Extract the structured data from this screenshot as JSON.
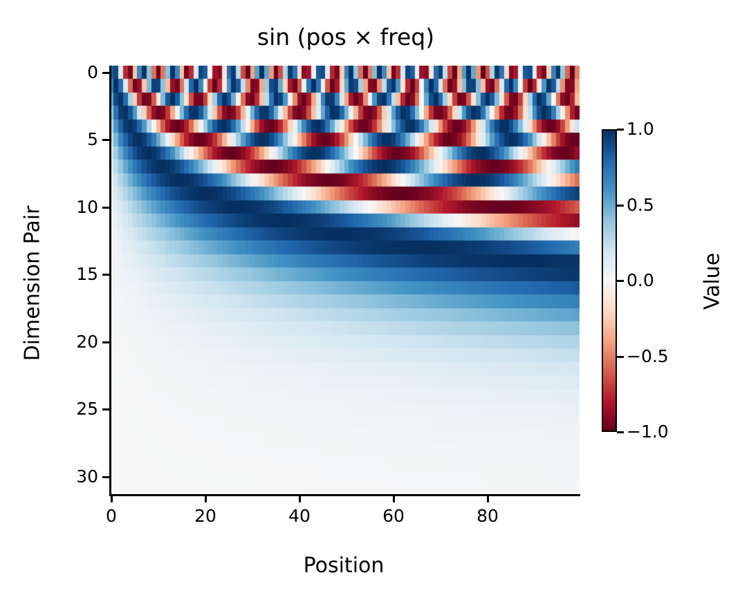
{
  "chart_data": {
    "type": "heatmap",
    "title": "sin (pos × freq)",
    "xlabel": "Position",
    "ylabel": "Dimension Pair",
    "x_ticks": [
      0,
      20,
      40,
      60,
      80
    ],
    "y_ticks": [
      0,
      5,
      10,
      15,
      20,
      25,
      30
    ],
    "x_range": [
      -0.5,
      99.5
    ],
    "y_range": [
      31.5,
      -0.5
    ],
    "n_positions": 100,
    "n_dimension_pairs": 32,
    "formula": "value[i][p] = sin((p+1) * 10000^(-2i/64))",
    "position_offset": 1,
    "d_model": 64,
    "base": 10000,
    "colormap": "RdBu",
    "vmin": -1.0,
    "vmax": 1.0,
    "colorbar": {
      "label": "Value",
      "ticks": [
        1.0,
        0.5,
        0.0,
        -0.5,
        -1.0
      ],
      "tick_labels": [
        "1.0",
        "0.5",
        "0.0",
        "−0.5",
        "−1.0"
      ]
    },
    "grid": false
  },
  "labels": {
    "title": "sin (pos × freq)",
    "xlabel": "Position",
    "ylabel": "Dimension Pair",
    "xticks": [
      "0",
      "20",
      "40",
      "60",
      "80"
    ],
    "yticks": [
      "0",
      "5",
      "10",
      "15",
      "20",
      "25",
      "30"
    ],
    "cbar_label": "Value",
    "cbar_ticks": [
      "1.0",
      "0.5",
      "0.0",
      "−0.5",
      "−1.0"
    ]
  },
  "colors": {
    "rdbu_stops": [
      "#67001f",
      "#b2182b",
      "#d6604d",
      "#f4a582",
      "#fddbc7",
      "#f7f7f7",
      "#d1e5f0",
      "#92c5de",
      "#4393c3",
      "#2166ac",
      "#053061"
    ]
  }
}
